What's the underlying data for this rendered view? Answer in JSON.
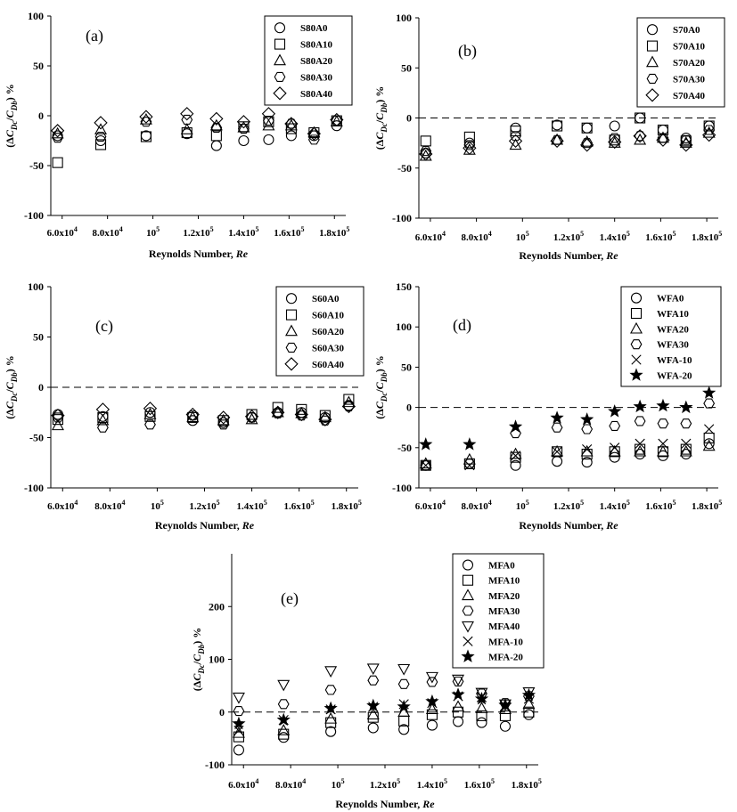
{
  "chart_data": [
    {
      "type": "scatter",
      "panel_label": "(a)",
      "xlabel": "Reynolds Number, Re",
      "ylabel": "(ΔCDc/CDb) %",
      "ylim": [
        -100,
        100
      ],
      "yticks": [
        100,
        50,
        0,
        -50,
        -100
      ],
      "ytick_labels": [
        "100",
        "50",
        "0",
        "-50",
        "-100"
      ],
      "xlim": [
        55000,
        185000
      ],
      "xticks": [
        60000,
        80000,
        100000,
        120000,
        140000,
        160000,
        180000
      ],
      "xtick_labels": [
        "6.0x10⁴",
        "8.0x10⁴",
        "10⁵",
        "1.2x10⁵",
        "1.4x10⁵",
        "1.6x10⁵",
        "1.8x10⁵"
      ],
      "zero_line": false,
      "legend_position": "top-right",
      "x": [
        58000,
        77000,
        97000,
        115000,
        128000,
        140000,
        151000,
        161000,
        171000,
        181000
      ],
      "series": [
        {
          "name": "S80A0",
          "marker": "circle",
          "values": [
            -20,
            -25,
            -20,
            -18,
            -30,
            -25,
            -24,
            -20,
            -20,
            -10
          ]
        },
        {
          "name": "S80A10",
          "marker": "square",
          "values": [
            -47,
            -29,
            -21,
            -17,
            -20,
            -11,
            -6,
            -13,
            -17,
            -5
          ]
        },
        {
          "name": "S80A20",
          "marker": "triangle-up",
          "values": [
            -18,
            -14,
            -4,
            -14,
            -10,
            -12,
            -10,
            -10,
            -17,
            -6
          ]
        },
        {
          "name": "S80A30",
          "marker": "hexagon",
          "values": [
            -22,
            -21,
            -6,
            -4,
            -12,
            -13,
            -5,
            -8,
            -24,
            -5
          ]
        },
        {
          "name": "S80A40",
          "marker": "diamond",
          "values": [
            -15,
            -7,
            -1,
            2,
            -3,
            -6,
            2,
            -8,
            -18,
            -4
          ]
        }
      ]
    },
    {
      "type": "scatter",
      "panel_label": "(b)",
      "xlabel": "Reynolds Number, Re",
      "ylabel": "(ΔCDc/CDb) %",
      "ylim": [
        -100,
        100
      ],
      "yticks": [
        100,
        50,
        0,
        -50,
        -100
      ],
      "ytick_labels": [
        "100",
        "50",
        "0",
        "-50",
        "-100"
      ],
      "xlim": [
        55000,
        185000
      ],
      "xticks": [
        60000,
        80000,
        100000,
        120000,
        140000,
        160000,
        180000
      ],
      "xtick_labels": [
        "6.0x10⁴",
        "8.0x10⁴",
        "10⁵",
        "1.2x10⁵",
        "1.4x10⁵",
        "1.6x10⁵",
        "1.8x10⁵"
      ],
      "zero_line": true,
      "legend_position": "top-right",
      "x": [
        58000,
        77000,
        97000,
        115000,
        128000,
        140000,
        151000,
        161000,
        171000,
        181000
      ],
      "series": [
        {
          "name": "S70A0",
          "marker": "circle",
          "values": [
            -35,
            -25,
            -10,
            -7,
            -10,
            -8,
            0,
            -12,
            -20,
            -8
          ]
        },
        {
          "name": "S70A10",
          "marker": "square",
          "values": [
            -23,
            -19,
            -13,
            -8,
            -10,
            -22,
            0,
            -12,
            -23,
            -8
          ]
        },
        {
          "name": "S70A20",
          "marker": "triangle-up",
          "values": [
            -38,
            -32,
            -27,
            -22,
            -24,
            -25,
            -22,
            -20,
            -25,
            -15
          ]
        },
        {
          "name": "S70A30",
          "marker": "hexagon",
          "values": [
            -33,
            -27,
            -18,
            -22,
            -25,
            -20,
            -18,
            -20,
            -22,
            -12
          ]
        },
        {
          "name": "S70A40",
          "marker": "diamond",
          "values": [
            -36,
            -30,
            -23,
            -23,
            -27,
            -24,
            -18,
            -22,
            -27,
            -17
          ]
        }
      ]
    },
    {
      "type": "scatter",
      "panel_label": "(c)",
      "xlabel": "Reynolds Number, Re",
      "ylabel": "(ΔCDc/CDb) %",
      "ylim": [
        -100,
        100
      ],
      "yticks": [
        100,
        50,
        0,
        -50,
        -100
      ],
      "ytick_labels": [
        "100",
        "50",
        "0",
        "-50",
        "-100"
      ],
      "xlim": [
        55000,
        185000
      ],
      "xticks": [
        60000,
        80000,
        100000,
        120000,
        140000,
        160000,
        180000
      ],
      "xtick_labels": [
        "6.0x10⁴",
        "8.0x10⁴",
        "10⁵",
        "1.2x10⁵",
        "1.4x10⁵",
        "1.6x10⁵",
        "1.8x10⁵"
      ],
      "zero_line": true,
      "legend_position": "top-right",
      "x": [
        58000,
        77000,
        97000,
        115000,
        128000,
        140000,
        151000,
        161000,
        171000,
        181000
      ],
      "series": [
        {
          "name": "S60A0",
          "marker": "circle",
          "values": [
            -27,
            -29,
            -25,
            -33,
            -35,
            -30,
            -25,
            -25,
            -30,
            -18
          ]
        },
        {
          "name": "S60A10",
          "marker": "square",
          "values": [
            -32,
            -30,
            -29,
            -30,
            -33,
            -27,
            -20,
            -22,
            -28,
            -12
          ]
        },
        {
          "name": "S60A20",
          "marker": "triangle-up",
          "values": [
            -38,
            -33,
            -27,
            -30,
            -33,
            -32,
            -25,
            -26,
            -30,
            -15
          ]
        },
        {
          "name": "S60A30",
          "marker": "hexagon",
          "values": [
            -30,
            -40,
            -37,
            -28,
            -37,
            -30,
            -26,
            -28,
            -33,
            -19
          ]
        },
        {
          "name": "S60A40",
          "marker": "diamond",
          "values": [
            -28,
            -22,
            -21,
            -27,
            -30,
            -29,
            -25,
            -27,
            -32,
            -19
          ]
        }
      ]
    },
    {
      "type": "scatter",
      "panel_label": "(d)",
      "xlabel": "Reynolds Number, Re",
      "ylabel": "(ΔCDc/CDb) %",
      "ylim": [
        -100,
        150
      ],
      "yticks": [
        150,
        100,
        50,
        0,
        -50,
        -100
      ],
      "ytick_labels": [
        "150",
        "100",
        "50",
        "0",
        "-50",
        "-100"
      ],
      "xlim": [
        55000,
        185000
      ],
      "xticks": [
        60000,
        80000,
        100000,
        120000,
        140000,
        160000,
        180000
      ],
      "xtick_labels": [
        "6.0x10⁴",
        "8.0x10⁴",
        "10⁵",
        "1.2x10⁵",
        "1.4x10⁵",
        "1.6x10⁵",
        "1.8x10⁵"
      ],
      "zero_line": true,
      "legend_position": "top-right",
      "x": [
        58000,
        77000,
        97000,
        115000,
        128000,
        140000,
        151000,
        161000,
        171000,
        181000
      ],
      "series": [
        {
          "name": "WFA0",
          "marker": "circle",
          "values": [
            -72,
            -70,
            -72,
            -67,
            -68,
            -62,
            -58,
            -60,
            -58,
            -45
          ]
        },
        {
          "name": "WFA10",
          "marker": "square",
          "values": [
            -72,
            -70,
            -62,
            -55,
            -58,
            -55,
            -52,
            -55,
            -52,
            -38
          ]
        },
        {
          "name": "WFA20",
          "marker": "triangle-up",
          "values": [
            -70,
            -65,
            -58,
            -55,
            -55,
            -55,
            -55,
            -55,
            -55,
            -48
          ]
        },
        {
          "name": "WFA30",
          "marker": "hexagon",
          "values": [
            -72,
            -70,
            -32,
            -25,
            -27,
            -23,
            -17,
            -20,
            -20,
            5
          ]
        },
        {
          "name": "WFA-10",
          "marker": "x",
          "values": [
            -72,
            -72,
            -60,
            -55,
            -52,
            -50,
            -45,
            -45,
            -45,
            -27
          ]
        },
        {
          "name": "WFA-20",
          "marker": "star",
          "values": [
            -46,
            -46,
            -24,
            -13,
            -15,
            -5,
            1,
            2,
            0,
            18
          ]
        }
      ]
    },
    {
      "type": "scatter",
      "panel_label": "(e)",
      "xlabel": "Reynolds Number, Re",
      "ylabel": "(ΔCDc/CDb) %",
      "ylim": [
        -100,
        300
      ],
      "yticks": [
        200,
        100,
        0,
        -100
      ],
      "ytick_labels": [
        "200",
        "100",
        "0",
        "-100"
      ],
      "xlim": [
        55000,
        185000
      ],
      "xticks": [
        60000,
        80000,
        100000,
        120000,
        140000,
        160000,
        180000
      ],
      "xtick_labels": [
        "6.0x10⁴",
        "8.0x10⁴",
        "10⁵",
        "1.2x10⁵",
        "1.4x10⁵",
        "1.6x10⁵",
        "1.8x10⁵"
      ],
      "zero_line": true,
      "legend_position": "top-right",
      "x": [
        58000,
        77000,
        97000,
        115000,
        128000,
        140000,
        151000,
        161000,
        171000,
        181000
      ],
      "series": [
        {
          "name": "MFA0",
          "marker": "circle",
          "values": [
            -72,
            -48,
            -37,
            -30,
            -33,
            -25,
            -18,
            -20,
            -27,
            -5
          ]
        },
        {
          "name": "MFA10",
          "marker": "square",
          "values": [
            -47,
            -42,
            -20,
            -10,
            -17,
            -5,
            0,
            -7,
            -7,
            0
          ]
        },
        {
          "name": "MFA20",
          "marker": "triangle-up",
          "values": [
            -40,
            -35,
            -13,
            -5,
            0,
            5,
            10,
            7,
            5,
            15
          ]
        },
        {
          "name": "MFA30",
          "marker": "hexagon",
          "values": [
            2,
            15,
            42,
            60,
            53,
            57,
            58,
            35,
            17,
            30
          ]
        },
        {
          "name": "MFA40",
          "marker": "triangle-down",
          "values": [
            28,
            52,
            78,
            83,
            82,
            67,
            62,
            37,
            15,
            38
          ]
        },
        {
          "name": "MFA-10",
          "marker": "x",
          "values": [
            -35,
            -15,
            5,
            10,
            15,
            17,
            30,
            28,
            12,
            25
          ]
        },
        {
          "name": "MFA-20",
          "marker": "star",
          "values": [
            -22,
            -15,
            7,
            12,
            10,
            20,
            33,
            25,
            13,
            32
          ]
        }
      ]
    }
  ]
}
